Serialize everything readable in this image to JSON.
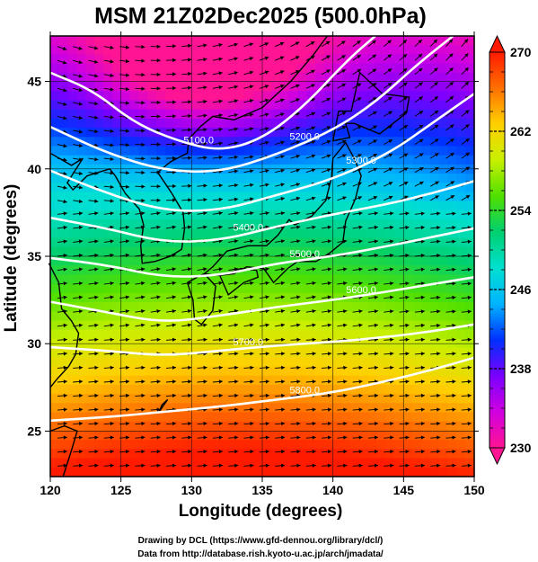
{
  "chart_data": {
    "type": "heatmap",
    "title": "MSM 21Z02Dec2025 (500.0hPa)",
    "xlabel": "Longitude (degrees)",
    "ylabel": "Latitude  (degrees)",
    "xlim": [
      120,
      150
    ],
    "ylim": [
      22.4,
      47.6
    ],
    "x_ticks": [
      "120",
      "125",
      "130",
      "135",
      "140",
      "145",
      "150"
    ],
    "y_ticks": [
      "25",
      "30",
      "35",
      "40",
      "45"
    ],
    "grid": true,
    "colorbar": {
      "min": 230,
      "max": 270,
      "tick_labels": [
        "270",
        "262",
        "254",
        "246",
        "238",
        "230"
      ],
      "colors": [
        "#ff1493",
        "#d000e0",
        "#7a00ff",
        "#0030ff",
        "#00b4ff",
        "#00e0d0",
        "#00d070",
        "#50e000",
        "#c8f000",
        "#ffd000",
        "#ff7000",
        "#ff1a00"
      ]
    },
    "cold_center": {
      "lon": 131,
      "lat": 46.5
    },
    "contours": [
      {
        "label": "5100.0",
        "lon": [
          120,
          123,
          126,
          129,
          132,
          135,
          138,
          141,
          143
        ],
        "lat": [
          45.5,
          44.5,
          42.6,
          41.6,
          41.0,
          41.7,
          43.6,
          46.2,
          47.6
        ]
      },
      {
        "label": "5200.0",
        "lon": [
          120,
          124,
          128,
          132,
          136,
          140,
          143,
          146,
          148.5
        ],
        "lat": [
          42.4,
          40.9,
          39.9,
          39.8,
          40.8,
          42.2,
          43.8,
          46.0,
          47.6
        ]
      },
      {
        "label": "5300.0",
        "lon": [
          120,
          124,
          128,
          132,
          136,
          140,
          144,
          147,
          150
        ],
        "lat": [
          39.9,
          38.6,
          37.6,
          37.6,
          38.5,
          39.4,
          40.9,
          42.6,
          44.3
        ]
      },
      {
        "label": "5400.0",
        "lon": [
          120,
          124,
          128,
          132,
          136,
          140,
          144,
          147,
          150
        ],
        "lat": [
          37.2,
          36.6,
          35.8,
          35.9,
          36.7,
          37.4,
          38.0,
          38.6,
          39.3
        ]
      },
      {
        "label": "5500.0",
        "lon": [
          120,
          124,
          128,
          132,
          136,
          140,
          144,
          147,
          150
        ],
        "lat": [
          34.9,
          34.5,
          33.8,
          33.9,
          34.6,
          35.0,
          35.6,
          36.1,
          36.6
        ]
      },
      {
        "label": "5600.0",
        "lon": [
          120,
          124,
          128,
          132,
          136,
          140,
          144,
          147,
          150
        ],
        "lat": [
          32.4,
          31.8,
          31.2,
          31.6,
          32.1,
          32.5,
          33.0,
          33.4,
          33.8
        ]
      },
      {
        "label": "5700.0",
        "lon": [
          120,
          124,
          128,
          132,
          136,
          140,
          144,
          147,
          150
        ],
        "lat": [
          29.8,
          29.6,
          29.3,
          29.6,
          29.9,
          30.1,
          30.4,
          30.7,
          31.1
        ]
      },
      {
        "label": "5800.0",
        "lon": [
          120,
          124,
          128,
          132,
          136,
          140,
          144,
          147,
          150
        ],
        "lat": [
          25.6,
          25.8,
          26.1,
          26.4,
          26.8,
          27.2,
          27.9,
          28.5,
          29.2
        ]
      }
    ]
  },
  "credits": {
    "line1": "Drawing by DCL (https://www.gfd-dennou.org/library/dcl/)",
    "line2": "Data from http://database.rish.kyoto-u.ac.jp/arch/jmadata/"
  }
}
